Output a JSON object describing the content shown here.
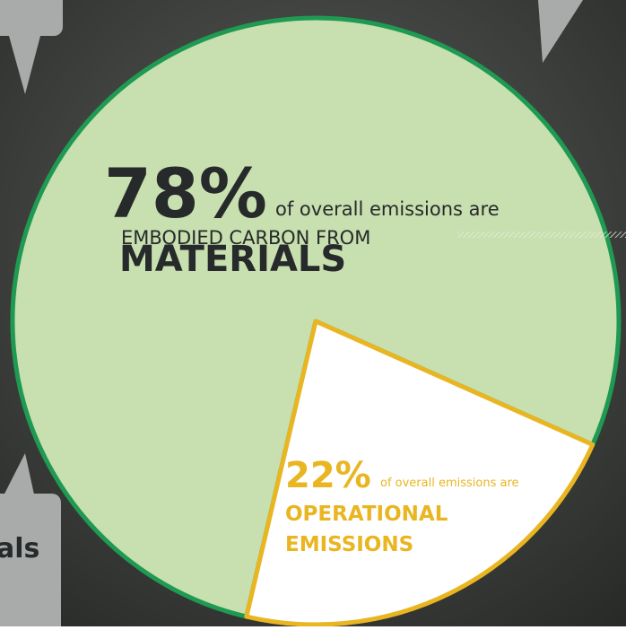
{
  "chart_data": {
    "type": "pie",
    "values": [
      78,
      22
    ],
    "value_labels": [
      "78%",
      "22%"
    ],
    "colors": [
      "#c8dfb0",
      "#ffffff"
    ],
    "edge_colors": [
      "#1f9a52",
      "#e9b521"
    ],
    "text_colors": [
      "#262a2a",
      "#e9b521"
    ],
    "annotations": [
      {
        "lead": "of overall emissions are",
        "line1": "EMBODIED CARBON FROM",
        "line2": "MATERIALS"
      },
      {
        "lead": "of overall emissions are",
        "line1": "OPERATIONAL",
        "line2": "EMISSIONS"
      }
    ]
  },
  "side_box": {
    "text": "als"
  }
}
